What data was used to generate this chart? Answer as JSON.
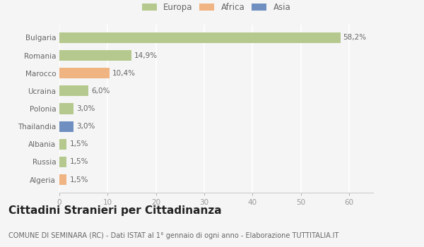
{
  "categories": [
    "Bulgaria",
    "Romania",
    "Marocco",
    "Ucraina",
    "Polonia",
    "Thailandia",
    "Albania",
    "Russia",
    "Algeria"
  ],
  "values": [
    58.2,
    14.9,
    10.4,
    6.0,
    3.0,
    3.0,
    1.5,
    1.5,
    1.5
  ],
  "labels": [
    "58,2%",
    "14,9%",
    "10,4%",
    "6,0%",
    "3,0%",
    "3,0%",
    "1,5%",
    "1,5%",
    "1,5%"
  ],
  "colors": [
    "#b5c98e",
    "#b5c98e",
    "#f0b482",
    "#b5c98e",
    "#b5c98e",
    "#6e8fbf",
    "#b5c98e",
    "#b5c98e",
    "#f0b482"
  ],
  "legend_labels": [
    "Europa",
    "Africa",
    "Asia"
  ],
  "legend_colors": [
    "#b5c98e",
    "#f0b482",
    "#6e8fbf"
  ],
  "xlim": [
    0,
    65
  ],
  "xticks": [
    0,
    10,
    20,
    30,
    40,
    50,
    60
  ],
  "title": "Cittadini Stranieri per Cittadinanza",
  "subtitle": "COMUNE DI SEMINARA (RC) - Dati ISTAT al 1° gennaio di ogni anno - Elaborazione TUTTITALIA.IT",
  "bg_color": "#f5f5f5",
  "bar_height": 0.6,
  "grid_color": "#ffffff",
  "label_fontsize": 7.5,
  "ytick_fontsize": 7.5,
  "xtick_fontsize": 7.5,
  "title_fontsize": 11,
  "subtitle_fontsize": 7.0,
  "legend_fontsize": 8.5
}
